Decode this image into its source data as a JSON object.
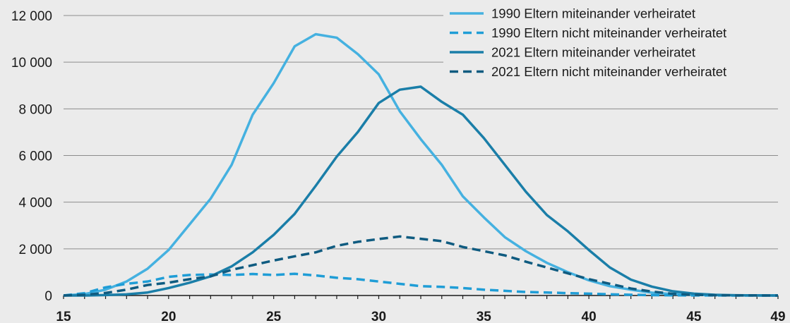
{
  "chart_data": {
    "type": "line",
    "title": "",
    "xlabel": "",
    "ylabel": "",
    "xlim": [
      15,
      49
    ],
    "ylim": [
      0,
      12000
    ],
    "x_ticks": [
      15,
      20,
      25,
      30,
      35,
      40,
      45,
      49
    ],
    "y_ticks": [
      {
        "value": 0,
        "label": "0"
      },
      {
        "value": 2000,
        "label": "2 000"
      },
      {
        "value": 4000,
        "label": "4 000"
      },
      {
        "value": 6000,
        "label": "6 000"
      },
      {
        "value": 8000,
        "label": "8 000"
      },
      {
        "value": 10000,
        "label": "10 000"
      },
      {
        "value": 12000,
        "label": "12 000"
      }
    ],
    "grid": "horizontal",
    "legend_position": "top-right",
    "x": [
      15,
      16,
      17,
      18,
      19,
      20,
      21,
      22,
      23,
      24,
      25,
      26,
      27,
      28,
      29,
      30,
      31,
      32,
      33,
      34,
      35,
      36,
      37,
      38,
      39,
      40,
      41,
      42,
      43,
      44,
      45,
      46,
      47,
      48,
      49
    ],
    "series": [
      {
        "name": "1990 Eltern miteinander verheiratet",
        "color": "#45b1e0",
        "dash": "solid",
        "values": [
          0,
          60,
          250,
          600,
          1150,
          1950,
          3050,
          4150,
          5600,
          7750,
          9100,
          10680,
          11200,
          11050,
          10350,
          9480,
          7900,
          6700,
          5600,
          4250,
          3350,
          2500,
          1900,
          1400,
          1000,
          650,
          400,
          250,
          120,
          60,
          30,
          15,
          5,
          2,
          0
        ]
      },
      {
        "name": "1990 Eltern nicht miteinander verheiratet",
        "color": "#1f9dd6",
        "dash": "dashed",
        "values": [
          0,
          100,
          350,
          500,
          600,
          800,
          880,
          900,
          880,
          920,
          880,
          930,
          860,
          760,
          700,
          600,
          500,
          400,
          370,
          320,
          250,
          200,
          150,
          130,
          100,
          80,
          50,
          30,
          15,
          8,
          4,
          2,
          1,
          0,
          0
        ]
      },
      {
        "name": "2021 Eltern miteinander verheiratet",
        "color": "#1a7ea8",
        "dash": "solid",
        "values": [
          0,
          0,
          20,
          50,
          130,
          320,
          550,
          820,
          1250,
          1850,
          2600,
          3500,
          4700,
          5950,
          7000,
          8250,
          8820,
          8950,
          8300,
          7750,
          6750,
          5600,
          4450,
          3450,
          2750,
          1950,
          1200,
          680,
          380,
          180,
          80,
          30,
          10,
          3,
          0
        ]
      },
      {
        "name": "2021 Eltern nicht miteinander verheiratet",
        "color": "#0f5b80",
        "dash": "dashed",
        "values": [
          0,
          30,
          110,
          250,
          450,
          550,
          700,
          820,
          1100,
          1300,
          1500,
          1680,
          1850,
          2130,
          2300,
          2420,
          2530,
          2430,
          2330,
          2080,
          1900,
          1720,
          1450,
          1200,
          950,
          700,
          500,
          300,
          170,
          70,
          30,
          10,
          5,
          2,
          0
        ]
      }
    ]
  }
}
